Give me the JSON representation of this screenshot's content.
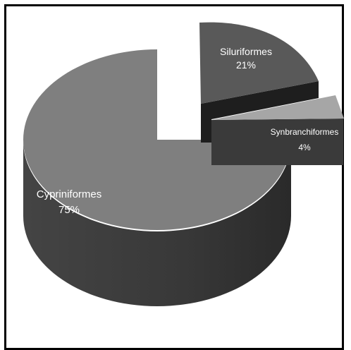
{
  "chart_data": {
    "type": "pie",
    "style": "3d-exploded",
    "slices": [
      {
        "name": "Cypriniformes",
        "label": "Cypriniformes",
        "percent_label": "75%",
        "value": 75,
        "color": "#7f7f7f",
        "side_color": "#444444"
      },
      {
        "name": "Siluriformes",
        "label": "Siluriformes",
        "percent_label": "21%",
        "value": 21,
        "color": "#595959",
        "side_color": "#1e1e1e"
      },
      {
        "name": "Synbranchiformes",
        "label": "Synbranchiformes",
        "percent_label": "4%",
        "value": 4,
        "color": "#a6a6a6",
        "side_color": "#3a3a3a"
      }
    ],
    "legend": "none",
    "data_labels": "inside"
  }
}
